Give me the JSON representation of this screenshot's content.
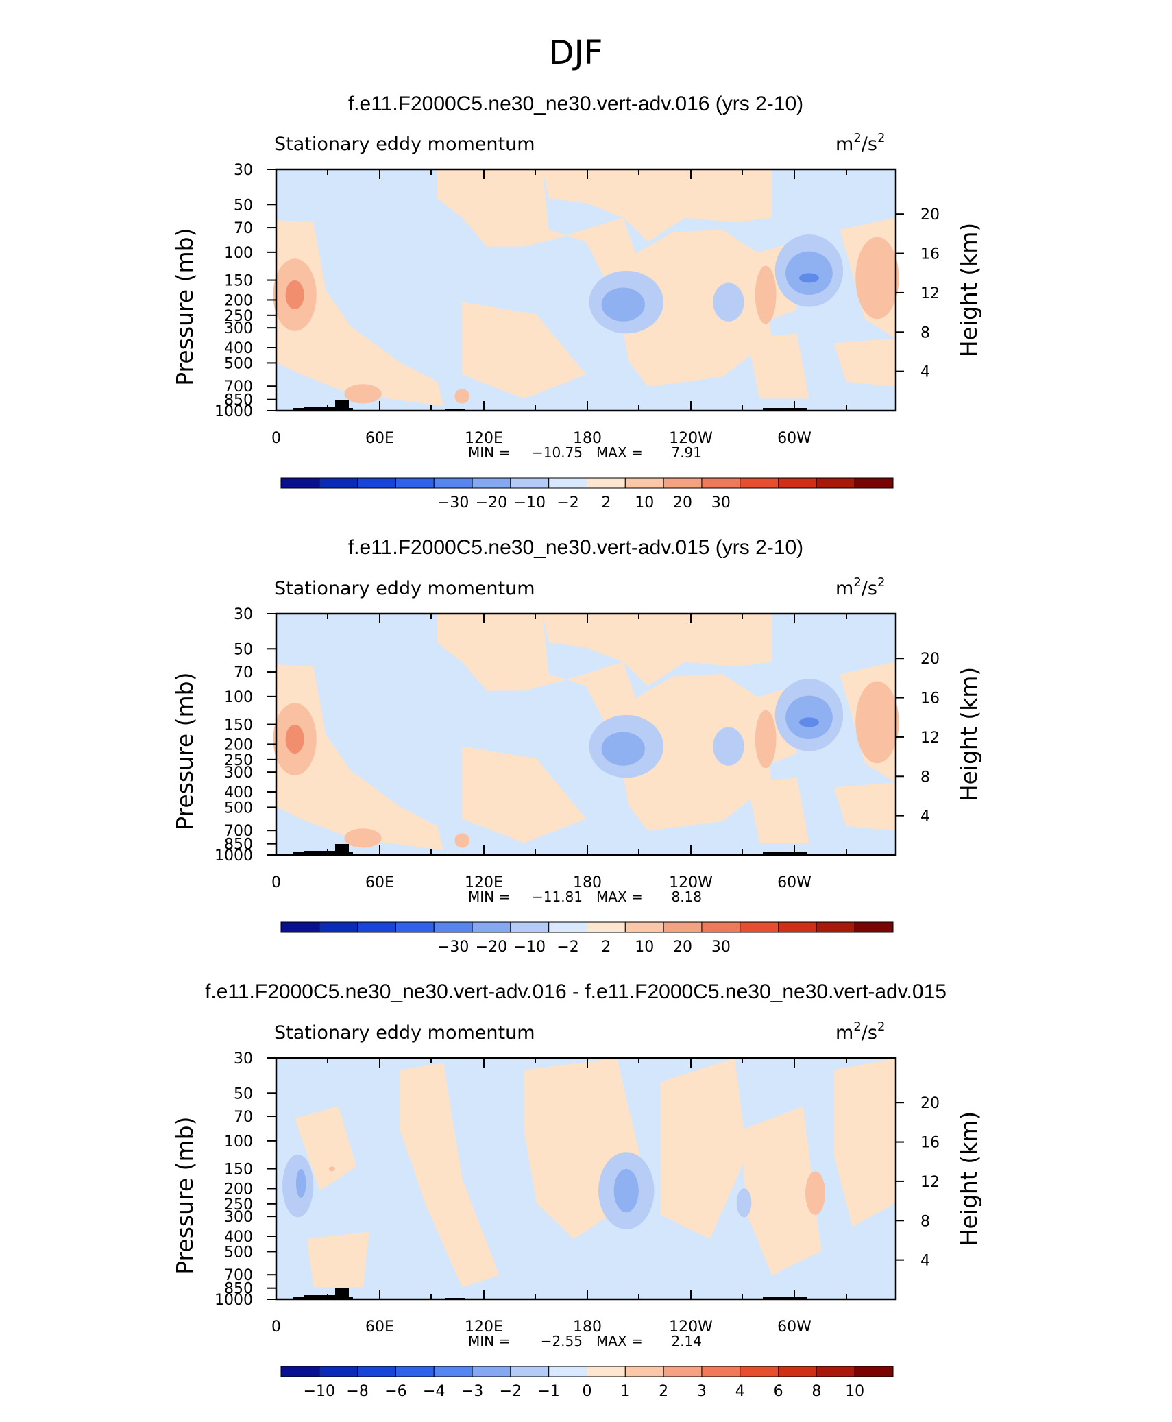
{
  "page_title": "DJF",
  "colors": {
    "lightblue": "#d4e6fb",
    "peach": "#fde2c8",
    "salmon": "#f9c0a1",
    "orange": "#f08e6e",
    "blue2": "#b7cdf6",
    "blue3": "#8fb0f1",
    "blue4": "#5f8ae9",
    "topo": "#000000"
  },
  "common": {
    "subtitle_left": "Stationary eddy momentum",
    "units_base": "m",
    "units_sup1": "2",
    "units_mid": "/s",
    "units_sup2": "2",
    "ylabel_left": "Pressure (mb)",
    "ylabel_right": "Height (km)",
    "min_label": "MIN =",
    "max_label": "MAX =",
    "pressure_ticks": [
      "30",
      "50",
      "70",
      "100",
      "150",
      "200",
      "250",
      "300",
      "400",
      "500",
      "700",
      "850",
      "1000"
    ],
    "height_ticks": [
      "20",
      "16",
      "12",
      "8",
      "4"
    ],
    "lon_ticks": [
      "0",
      "60E",
      "120E",
      "180",
      "120W",
      "60W"
    ]
  },
  "chart_data": [
    {
      "type": "heatmap",
      "title": "f.e11.F2000C5.ne30_ne30.vert-adv.016 (yrs 2-10)",
      "x_axis": "longitude",
      "y_axis": "pressure (mb), log scale",
      "ylim": [
        1000,
        30
      ],
      "min": "-10.75",
      "max": "7.91",
      "colorbar_labels": [
        "-30",
        "-20",
        "-10",
        "-2",
        "2",
        "10",
        "20",
        "30"
      ],
      "colorbar_colors": [
        "#08108f",
        "#0a2bb8",
        "#1745da",
        "#2f62ea",
        "#5585ee",
        "#84a8f2",
        "#b4caf7",
        "#d9e8fc",
        "#fde6cf",
        "#fbc7a9",
        "#f5a283",
        "#ef7a5a",
        "#e64e2e",
        "#cf2f14",
        "#a9190a",
        "#7a0403"
      ]
    },
    {
      "type": "heatmap",
      "title": "f.e11.F2000C5.ne30_ne30.vert-adv.015 (yrs 2-10)",
      "x_axis": "longitude",
      "y_axis": "pressure (mb), log scale",
      "ylim": [
        1000,
        30
      ],
      "min": "-11.81",
      "max": "8.18",
      "colorbar_labels": [
        "-30",
        "-20",
        "-10",
        "-2",
        "2",
        "10",
        "20",
        "30"
      ],
      "colorbar_colors": [
        "#08108f",
        "#0a2bb8",
        "#1745da",
        "#2f62ea",
        "#5585ee",
        "#84a8f2",
        "#b4caf7",
        "#d9e8fc",
        "#fde6cf",
        "#fbc7a9",
        "#f5a283",
        "#ef7a5a",
        "#e64e2e",
        "#cf2f14",
        "#a9190a",
        "#7a0403"
      ]
    },
    {
      "type": "heatmap",
      "title": "f.e11.F2000C5.ne30_ne30.vert-adv.016 - f.e11.F2000C5.ne30_ne30.vert-adv.015",
      "x_axis": "longitude",
      "y_axis": "pressure (mb), log scale",
      "ylim": [
        1000,
        30
      ],
      "min": "-2.55",
      "max": "2.14",
      "colorbar_labels": [
        "-10",
        "-8",
        "-6",
        "-4",
        "-3",
        "-2",
        "-1",
        "0",
        "1",
        "2",
        "3",
        "4",
        "6",
        "8",
        "10"
      ],
      "colorbar_colors": [
        "#08108f",
        "#0a2bb8",
        "#1745da",
        "#2f62ea",
        "#5585ee",
        "#84a8f2",
        "#b4caf7",
        "#d9e8fc",
        "#fde6cf",
        "#fbc7a9",
        "#f5a283",
        "#ef7a5a",
        "#e64e2e",
        "#cf2f14",
        "#a9190a",
        "#7a0403"
      ]
    }
  ]
}
